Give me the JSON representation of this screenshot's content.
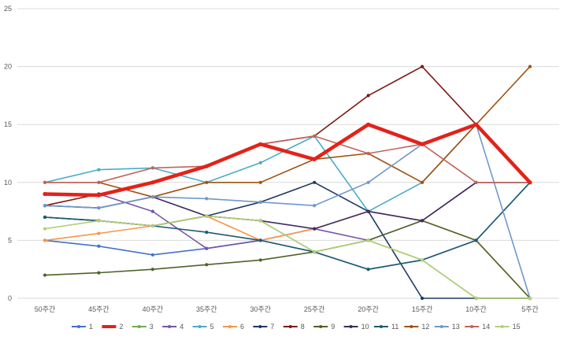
{
  "chart_data": {
    "type": "line",
    "title": "",
    "xlabel": "",
    "ylabel": "",
    "ylim": [
      0,
      25
    ],
    "yticks": [
      0,
      5,
      10,
      15,
      20,
      25
    ],
    "grid": true,
    "legend_position": "bottom",
    "categories": [
      "50주간",
      "45주간",
      "40주간",
      "35주간",
      "30주간",
      "25주간",
      "20주간",
      "15주간",
      "10주간",
      "5주간"
    ],
    "series": [
      {
        "name": "1",
        "color": "#4472c4",
        "values": [
          5,
          4.5,
          3.75,
          4.3,
          5,
          4,
          2.5,
          3.3,
          5,
          10
        ]
      },
      {
        "name": "2",
        "color": "#e32219",
        "emphasis": true,
        "values": [
          9,
          8.9,
          10,
          11.4,
          13.3,
          12,
          15,
          13.3,
          15,
          10
        ]
      },
      {
        "name": "3",
        "color": "#70ad47",
        "values": [
          7,
          6.7,
          6.25,
          7.1,
          6.7,
          4,
          5,
          3.3,
          0,
          0
        ]
      },
      {
        "name": "4",
        "color": "#7a54a8",
        "values": [
          9,
          9,
          7.5,
          4.3,
          5,
          6,
          5,
          6.7,
          10,
          10
        ]
      },
      {
        "name": "5",
        "color": "#4bacc6",
        "values": [
          10,
          11.1,
          11.25,
          10,
          11.7,
          14,
          7.5,
          10,
          15,
          10
        ]
      },
      {
        "name": "6",
        "color": "#f79646",
        "values": [
          5,
          5.6,
          6.25,
          7.1,
          5,
          6,
          7.5,
          6.7,
          5,
          0
        ]
      },
      {
        "name": "7",
        "color": "#1f3864",
        "values": [
          7,
          6.7,
          6.25,
          7.1,
          8.3,
          10,
          7.5,
          0,
          0,
          0
        ]
      },
      {
        "name": "8",
        "color": "#7b1a12",
        "values": [
          8,
          9,
          10,
          11.4,
          13.3,
          14,
          17.5,
          20,
          15,
          10
        ]
      },
      {
        "name": "9",
        "color": "#4f6228",
        "values": [
          2,
          2.2,
          2.5,
          2.9,
          3.3,
          4,
          5,
          6.7,
          5,
          0
        ]
      },
      {
        "name": "10",
        "color": "#3f2a5e",
        "values": [
          8,
          7.8,
          8.75,
          7.1,
          6.7,
          6,
          7.5,
          6.7,
          10,
          10
        ]
      },
      {
        "name": "11",
        "color": "#1e5b73",
        "values": [
          7,
          6.7,
          6.25,
          5.7,
          5,
          4,
          2.5,
          3.3,
          5,
          10
        ]
      },
      {
        "name": "12",
        "color": "#a0520f",
        "values": [
          10,
          10,
          8.75,
          10,
          10,
          12,
          12.5,
          10,
          15,
          20
        ]
      },
      {
        "name": "13",
        "color": "#6f97c9",
        "values": [
          8,
          7.8,
          8.75,
          8.6,
          8.3,
          8,
          10,
          13.3,
          15,
          0
        ]
      },
      {
        "name": "14",
        "color": "#c0645c",
        "values": [
          10,
          10,
          11.25,
          11.4,
          13.3,
          14,
          12.5,
          13.3,
          10,
          10
        ]
      },
      {
        "name": "15",
        "color": "#b3cf77",
        "values": [
          6,
          6.7,
          6.25,
          7.1,
          6.7,
          4,
          5,
          3.3,
          0,
          0
        ]
      }
    ]
  }
}
